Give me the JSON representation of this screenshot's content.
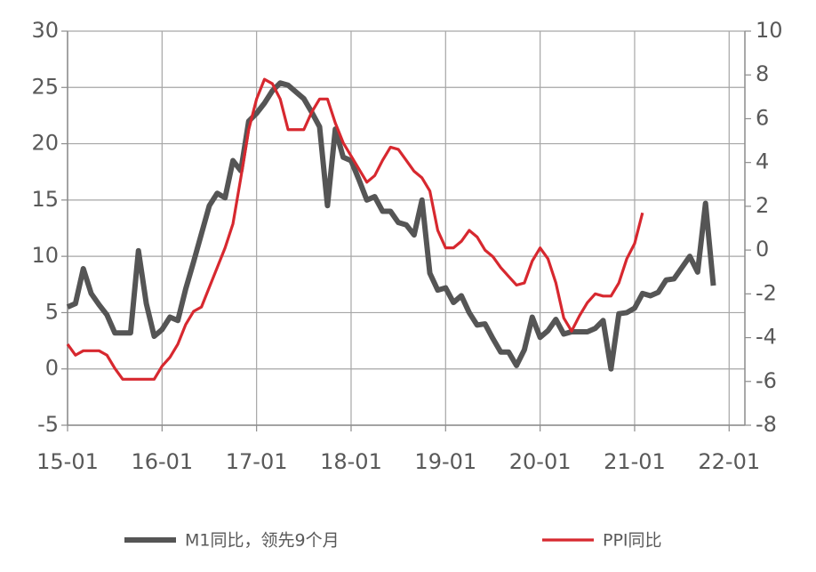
{
  "chart_data": {
    "type": "line",
    "x": [
      "15-01",
      "15-02",
      "15-03",
      "15-04",
      "15-05",
      "15-06",
      "15-07",
      "15-08",
      "15-09",
      "15-10",
      "15-11",
      "15-12",
      "16-01",
      "16-02",
      "16-03",
      "16-04",
      "16-05",
      "16-06",
      "16-07",
      "16-08",
      "16-09",
      "16-10",
      "16-11",
      "16-12",
      "17-01",
      "17-02",
      "17-03",
      "17-04",
      "17-05",
      "17-06",
      "17-07",
      "17-08",
      "17-09",
      "17-10",
      "17-11",
      "17-12",
      "18-01",
      "18-02",
      "18-03",
      "18-04",
      "18-05",
      "18-06",
      "18-07",
      "18-08",
      "18-09",
      "18-10",
      "18-11",
      "18-12",
      "19-01",
      "19-02",
      "19-03",
      "19-04",
      "19-05",
      "19-06",
      "19-07",
      "19-08",
      "19-09",
      "19-10",
      "19-11",
      "19-12",
      "20-01",
      "20-02",
      "20-03",
      "20-04",
      "20-05",
      "20-06",
      "20-07",
      "20-08",
      "20-09",
      "20-10",
      "20-11",
      "20-12",
      "21-01",
      "21-02",
      "21-03",
      "21-04",
      "21-05",
      "21-06",
      "21-07",
      "21-08",
      "21-09",
      "21-10",
      "21-11"
    ],
    "series": [
      {
        "name": "M1同比，领先9个月",
        "color": "#555555",
        "axis": "y",
        "values": [
          5.5,
          5.8,
          8.9,
          6.7,
          5.7,
          4.8,
          3.2,
          3.2,
          3.2,
          10.5,
          5.8,
          2.9,
          3.5,
          4.6,
          4.3,
          7.1,
          9.5,
          12,
          14.5,
          15.6,
          15.2,
          18.5,
          17.6,
          22,
          22.7,
          23.6,
          24.7,
          25.4,
          25.2,
          24.6,
          24,
          22.8,
          21.5,
          14.5,
          21.3,
          18.8,
          18.5,
          16.8,
          15,
          15.3,
          14,
          14,
          13,
          12.8,
          11.9,
          15,
          8.5,
          7,
          7.2,
          5.9,
          6.5,
          5,
          3.9,
          4,
          2.7,
          1.5,
          1.5,
          0.3,
          1.7,
          4.6,
          2.8,
          3.4,
          4.4,
          3.1,
          3.3,
          3.3,
          3.3,
          3.6,
          4.3,
          0,
          4.9,
          5,
          5.4,
          6.7,
          6.5,
          6.8,
          7.9,
          8,
          9,
          10,
          8.6,
          14.7,
          7.4
        ]
      },
      {
        "name": "PPI同比",
        "color": "#d7282f",
        "axis": "y2",
        "values": [
          -4.3,
          -4.8,
          -4.6,
          -4.6,
          -4.6,
          -4.8,
          -5.4,
          -5.9,
          -5.9,
          -5.9,
          -5.9,
          -5.9,
          -5.3,
          -4.9,
          -4.3,
          -3.4,
          -2.8,
          -2.6,
          -1.7,
          -0.8,
          0.1,
          1.2,
          3.3,
          5.5,
          6.9,
          7.8,
          7.6,
          6.9,
          5.5,
          5.5,
          5.5,
          6.3,
          6.9,
          6.9,
          5.8,
          4.9,
          4.3,
          3.7,
          3.1,
          3.4,
          4.1,
          4.7,
          4.6,
          4.1,
          3.6,
          3.3,
          2.7,
          0.9,
          0.1,
          0.1,
          0.4,
          0.9,
          0.6,
          0,
          -0.3,
          -0.8,
          -1.2,
          -1.6,
          -1.5,
          -0.5,
          0.1,
          -0.4,
          -1.5,
          -3.1,
          -3.7,
          -3,
          -2.4,
          -2,
          -2.1,
          -2.1,
          -1.5,
          -0.4,
          0.3,
          1.7,
          null,
          null,
          null,
          null,
          null,
          null,
          null,
          null,
          null
        ]
      }
    ],
    "xlim": [
      "15-01",
      "22-03"
    ],
    "xticks": [
      "15-01",
      "16-01",
      "17-01",
      "18-01",
      "19-01",
      "20-01",
      "21-01",
      "22-01"
    ],
    "ylim": [
      -5,
      30
    ],
    "yticks": [
      -5,
      0,
      5,
      10,
      15,
      20,
      25,
      30
    ],
    "y2lim": [
      -8,
      10
    ],
    "y2ticks": [
      -8,
      -6,
      -4,
      -2,
      0,
      2,
      4,
      6,
      8,
      10
    ],
    "grid": true,
    "legend": "bottom"
  }
}
